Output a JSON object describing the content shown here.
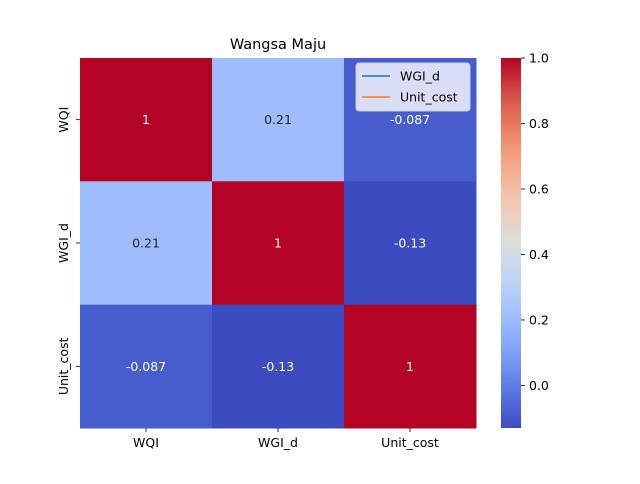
{
  "chart_data": {
    "type": "heatmap",
    "title": "Wangsa Maju",
    "xlabel": "",
    "ylabel": "",
    "x_categories": [
      "WQI",
      "WGI_d",
      "Unit_cost"
    ],
    "y_categories": [
      "WQI",
      "WGI_d",
      "Unit_cost"
    ],
    "values": [
      [
        1,
        0.21,
        -0.087
      ],
      [
        0.21,
        1,
        -0.13
      ],
      [
        -0.087,
        -0.13,
        1
      ]
    ],
    "annotations": [
      [
        "1",
        "0.21",
        "-0.087"
      ],
      [
        "0.21",
        "1",
        "-0.13"
      ],
      [
        "-0.087",
        "-0.13",
        "1"
      ]
    ],
    "colormap": "coolwarm",
    "vmin": -0.13,
    "vmax": 1.0,
    "colorbar_ticks": [
      "0.0",
      "0.2",
      "0.4",
      "0.6",
      "0.8",
      "1.0"
    ],
    "colorbar_tick_values": [
      0,
      0.2,
      0.4,
      0.6,
      0.8,
      1.0
    ],
    "legend": {
      "placement": "top-right",
      "entries": [
        {
          "label": "WGI_d",
          "color": "#1f77b4"
        },
        {
          "label": "Unit_cost",
          "color": "#ff7f0e"
        }
      ]
    }
  }
}
